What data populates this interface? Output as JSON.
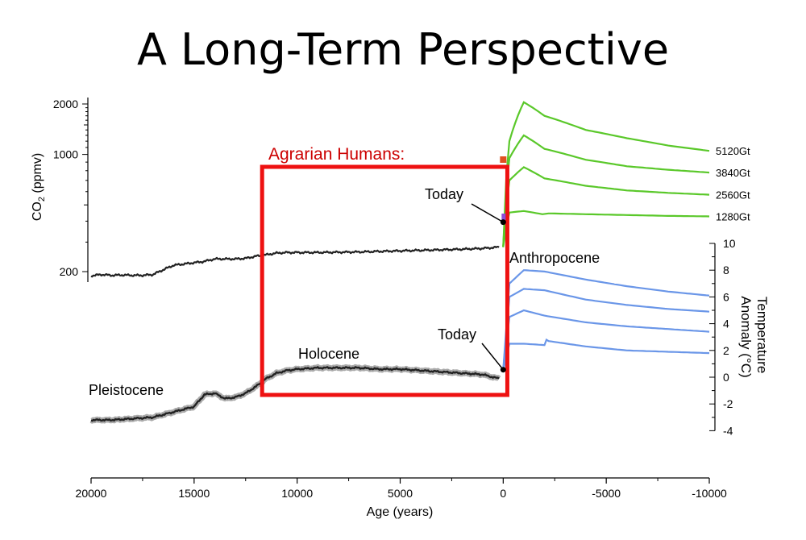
{
  "title": "A Long-Term Perspective",
  "chart_data": {
    "type": "line",
    "xlabel": "Age (years)",
    "x_ticks": [
      20000,
      15000,
      10000,
      5000,
      0,
      -5000,
      -10000
    ],
    "xlim": [
      20000,
      -10000
    ],
    "co2_axis": {
      "label": "CO",
      "label_sub": "2",
      "label_tail": " (ppmv)",
      "scale": "log",
      "ticks": [
        200,
        1000,
        2000
      ]
    },
    "temp_axis": {
      "label_line1": "Temperature",
      "label_line2": "Anomaly (°C)",
      "ticks": [
        -4,
        -2,
        0,
        2,
        4,
        6,
        8,
        10
      ]
    },
    "colors": {
      "co2_history": "#222222",
      "temp_history": "#222222",
      "temp_band": "#aaaaaa",
      "co2_future": "#5ac82a",
      "temp_future": "#6a96e8",
      "highlight_box": "#ee1111",
      "highlight_text": "#cc0000"
    },
    "co2_history": {
      "x": [
        20000,
        19500,
        19000,
        18500,
        18000,
        17500,
        17000,
        16500,
        16000,
        15500,
        15000,
        14500,
        14000,
        13500,
        13000,
        12500,
        12000,
        11500,
        11000,
        10500,
        10000,
        9000,
        8000,
        7000,
        6000,
        5000,
        4000,
        3000,
        2000,
        1000,
        500,
        200
      ],
      "y": [
        189,
        192,
        190,
        191,
        190,
        190,
        192,
        205,
        218,
        222,
        226,
        230,
        238,
        238,
        238,
        240,
        247,
        252,
        258,
        260,
        260,
        260,
        261,
        262,
        264,
        266,
        268,
        270,
        272,
        275,
        278,
        280
      ]
    },
    "temp_history": {
      "x": [
        20000,
        19000,
        18000,
        17000,
        16500,
        16000,
        15500,
        15000,
        14500,
        14000,
        13500,
        13000,
        12500,
        12000,
        11500,
        11000,
        10500,
        10000,
        9000,
        8000,
        7000,
        6000,
        5000,
        4000,
        3000,
        2000,
        1000,
        500,
        200
      ],
      "y": [
        -3.2,
        -3.2,
        -3.1,
        -3.0,
        -2.8,
        -2.6,
        -2.4,
        -2.2,
        -1.3,
        -1.2,
        -1.6,
        -1.5,
        -1.2,
        -0.7,
        -0.1,
        0.3,
        0.5,
        0.6,
        0.7,
        0.7,
        0.7,
        0.6,
        0.6,
        0.5,
        0.4,
        0.3,
        0.2,
        0.0,
        -0.1
      ]
    },
    "co2_future": [
      {
        "name": "5120Gt",
        "x": [
          0,
          -300,
          -1000,
          -2000,
          -4000,
          -6000,
          -8000,
          -10000
        ],
        "y": [
          280,
          1200,
          2050,
          1700,
          1400,
          1250,
          1130,
          1050
        ]
      },
      {
        "name": "3840Gt",
        "x": [
          0,
          -300,
          -1000,
          -2000,
          -4000,
          -6000,
          -8000,
          -10000
        ],
        "y": [
          280,
          950,
          1300,
          1080,
          930,
          850,
          810,
          780
        ]
      },
      {
        "name": "2560Gt",
        "x": [
          0,
          -300,
          -1000,
          -2000,
          -4000,
          -6000,
          -8000,
          -10000
        ],
        "y": [
          280,
          700,
          840,
          720,
          650,
          610,
          590,
          575
        ]
      },
      {
        "name": "1280Gt",
        "x": [
          0,
          -300,
          -1000,
          -1900,
          -2200,
          -4000,
          -6000,
          -8000,
          -10000
        ],
        "y": [
          280,
          450,
          460,
          440,
          445,
          440,
          435,
          430,
          427
        ]
      }
    ],
    "temp_future": [
      {
        "x": [
          0,
          -300,
          -1000,
          -2000,
          -4000,
          -6000,
          -8000,
          -10000
        ],
        "y": [
          0.5,
          7.0,
          8.0,
          7.9,
          7.3,
          6.8,
          6.4,
          6.1
        ]
      },
      {
        "x": [
          0,
          -300,
          -1000,
          -2000,
          -4000,
          -6000,
          -8000,
          -10000
        ],
        "y": [
          0.5,
          6.0,
          6.6,
          6.5,
          5.8,
          5.4,
          5.1,
          4.9
        ]
      },
      {
        "x": [
          0,
          -300,
          -1000,
          -2000,
          -4000,
          -6000,
          -8000,
          -10000
        ],
        "y": [
          0.5,
          4.5,
          5.0,
          4.6,
          4.1,
          3.8,
          3.6,
          3.4
        ]
      },
      {
        "x": [
          0,
          -300,
          -1000,
          -2000,
          -2100,
          -2200,
          -4000,
          -6000,
          -8000,
          -10000
        ],
        "y": [
          0.5,
          2.5,
          2.5,
          2.4,
          2.8,
          2.7,
          2.3,
          2.0,
          1.9,
          1.8
        ]
      }
    ],
    "today_co2": {
      "x": 0,
      "y": 280,
      "label": "Today"
    },
    "today_temp": {
      "x": 0,
      "y": 0.5,
      "label": "Today"
    },
    "period_labels": {
      "pleistocene": "Pleistocene",
      "holocene": "Holocene",
      "anthropocene": "Anthropocene"
    },
    "highlight": {
      "label": "Agrarian Humans:",
      "x_range": [
        11700,
        -200
      ]
    }
  }
}
